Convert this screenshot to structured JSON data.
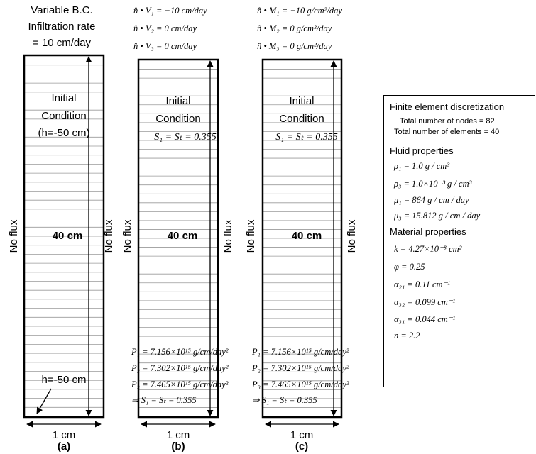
{
  "columns": [
    {
      "bc_top": [
        "Variable B.C.",
        "Infiltration rate",
        "= 10 cm/day"
      ],
      "initial_condition": [
        "Initial",
        "Condition",
        "(h=-50 cm)"
      ],
      "height_label": "40 cm",
      "bottom_label": "h=-50 cm",
      "width_label": "1 cm",
      "caption": "(a)"
    },
    {
      "bc_top": [
        "n̂ • V₁ = −10 cm/day",
        "n̂ • V₂ = 0 cm/day",
        "n̂ • V₃ = 0 cm/day"
      ],
      "initial_condition": [
        "Initial",
        "Condition"
      ],
      "saturation": "S₁ = Sₜ = 0.355",
      "height_label": "40 cm",
      "bottom_lines": [
        "P₁ = 7.156×10¹⁵ g/cm/day²",
        "P₂ = 7.302×10¹⁵ g/cm/day²",
        "P₃ = 7.465×10¹⁵ g/cm/day²",
        "⇒ S₁ = Sₜ = 0.355"
      ],
      "width_label": "1 cm",
      "caption": "(b)"
    },
    {
      "bc_top": [
        "n̂ • M₁ = −10 g/cm²/day",
        "n̂ • M₂ = 0 g/cm²/day",
        "n̂ • M₃ = 0 g/cm²/day"
      ],
      "initial_condition": [
        "Initial",
        "Condition"
      ],
      "saturation": "S₁ = Sₜ = 0.355",
      "height_label": "40 cm",
      "bottom_lines": [
        "P₁ = 7.156×10¹⁵ g/cm/day²",
        "P₂ = 7.302×10¹⁵ g/cm/day²",
        "P₃ = 7.465×10¹⁵ g/cm/day²",
        "⇒ S₁ = Sₜ = 0.355"
      ],
      "width_label": "1 cm",
      "caption": "(c)"
    }
  ],
  "side_label": "No flux",
  "properties": {
    "fe_title": "Finite element discretization",
    "fe_lines": [
      "Total number of nodes = 82",
      "Total number of elements = 40"
    ],
    "fluid_title": "Fluid properties",
    "fluid_lines": [
      "ρ₁ = 1.0 g / cm³",
      "ρ₃ = 1.0×10⁻³ g / cm³",
      "μ₁ = 864 g / cm / day",
      "μ₃ = 15.812 g / cm / day"
    ],
    "material_title": "Material properties",
    "material_lines": [
      "k = 4.27×10⁻⁸ cm²",
      "φ = 0.25",
      "α₂₁ = 0.11 cm⁻¹",
      "α₃₂ = 0.099 cm⁻¹",
      "α₃₁ = 0.044 cm⁻¹",
      "n = 2.2"
    ]
  },
  "element_count": 40
}
